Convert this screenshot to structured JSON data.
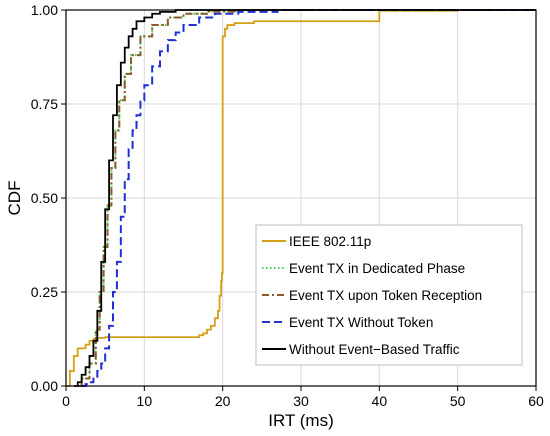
{
  "chart_data": {
    "type": "line",
    "subtype": "step-cdf",
    "xlabel": "IRT (ms)",
    "ylabel": "CDF",
    "xlim": [
      0,
      60
    ],
    "ylim": [
      0,
      1
    ],
    "xticks": [
      0,
      10,
      20,
      30,
      40,
      50,
      60
    ],
    "yticks": [
      0,
      0.25,
      0.5,
      0.75,
      1.0
    ],
    "xtick_labels": [
      "0",
      "10",
      "20",
      "30",
      "40",
      "50",
      "60"
    ],
    "ytick_labels": [
      "0.00",
      "0.25",
      "0.50",
      "0.75",
      "1.00"
    ],
    "grid": true,
    "legend_position": "bottom-right",
    "series": [
      {
        "name": "IEEE 802.11p",
        "color": "#d4a017",
        "dash": "solid",
        "points": [
          [
            0,
            0
          ],
          [
            0.5,
            0.04
          ],
          [
            1,
            0.08
          ],
          [
            1.5,
            0.1
          ],
          [
            2.5,
            0.11
          ],
          [
            3,
            0.12
          ],
          [
            3.5,
            0.125
          ],
          [
            4,
            0.128
          ],
          [
            5,
            0.13
          ],
          [
            10,
            0.13
          ],
          [
            16,
            0.13
          ],
          [
            17,
            0.135
          ],
          [
            17.5,
            0.14
          ],
          [
            18,
            0.15
          ],
          [
            18.5,
            0.16
          ],
          [
            19,
            0.18
          ],
          [
            19.4,
            0.2
          ],
          [
            19.6,
            0.24
          ],
          [
            19.8,
            0.28
          ],
          [
            19.9,
            0.3
          ],
          [
            20,
            0.93
          ],
          [
            20.3,
            0.95
          ],
          [
            20.6,
            0.96
          ],
          [
            21.5,
            0.965
          ],
          [
            24,
            0.97
          ],
          [
            30,
            0.97
          ],
          [
            39.6,
            0.97
          ],
          [
            40,
            0.998
          ],
          [
            50,
            1.0
          ],
          [
            60,
            1.0
          ]
        ]
      },
      {
        "name": "Event TX in Dedicated Phase",
        "color": "#44cc44",
        "dash": "dotted",
        "points": [
          [
            1.5,
            0
          ],
          [
            2,
            0.02
          ],
          [
            3,
            0.06
          ],
          [
            3.8,
            0.15
          ],
          [
            4.3,
            0.25
          ],
          [
            4.8,
            0.37
          ],
          [
            5.3,
            0.48
          ],
          [
            5.8,
            0.58
          ],
          [
            6.3,
            0.68
          ],
          [
            6.8,
            0.76
          ],
          [
            7.5,
            0.83
          ],
          [
            8.3,
            0.88
          ],
          [
            9.5,
            0.93
          ],
          [
            11,
            0.96
          ],
          [
            13,
            0.98
          ],
          [
            15,
            0.99
          ],
          [
            18,
            0.996
          ],
          [
            22,
            1.0
          ],
          [
            60,
            1.0
          ]
        ]
      },
      {
        "name": "Event TX upon Token Reception",
        "color": "#8b5a2b",
        "dash": "dashdot",
        "points": [
          [
            1.5,
            0
          ],
          [
            2,
            0.02
          ],
          [
            3,
            0.06
          ],
          [
            3.8,
            0.15
          ],
          [
            4.3,
            0.25
          ],
          [
            4.8,
            0.37
          ],
          [
            5.3,
            0.48
          ],
          [
            5.8,
            0.58
          ],
          [
            6.3,
            0.68
          ],
          [
            6.8,
            0.76
          ],
          [
            7.5,
            0.83
          ],
          [
            8.3,
            0.88
          ],
          [
            9.5,
            0.93
          ],
          [
            11,
            0.96
          ],
          [
            13,
            0.98
          ],
          [
            15,
            0.99
          ],
          [
            18,
            0.996
          ],
          [
            22,
            1.0
          ],
          [
            60,
            1.0
          ]
        ]
      },
      {
        "name": "Event TX Without Token",
        "color": "#1f2fd6",
        "dash": "dashed",
        "points": [
          [
            2,
            0
          ],
          [
            2.5,
            0.005
          ],
          [
            3,
            0.01
          ],
          [
            3.5,
            0.02
          ],
          [
            4,
            0.04
          ],
          [
            4.5,
            0.06
          ],
          [
            5,
            0.1
          ],
          [
            5.5,
            0.16
          ],
          [
            6,
            0.25
          ],
          [
            6.5,
            0.33
          ],
          [
            7,
            0.45
          ],
          [
            7.5,
            0.55
          ],
          [
            8,
            0.63
          ],
          [
            8.5,
            0.68
          ],
          [
            9,
            0.72
          ],
          [
            9.5,
            0.76
          ],
          [
            10,
            0.8
          ],
          [
            11,
            0.85
          ],
          [
            12,
            0.89
          ],
          [
            13,
            0.92
          ],
          [
            14,
            0.94
          ],
          [
            15,
            0.96
          ],
          [
            17,
            0.98
          ],
          [
            19,
            0.99
          ],
          [
            22,
            0.995
          ],
          [
            27,
            1.0
          ],
          [
            60,
            1.0
          ]
        ]
      },
      {
        "name": "Without Event−Based Traffic",
        "color": "#000000",
        "dash": "solid",
        "points": [
          [
            1,
            0
          ],
          [
            1.5,
            0.01
          ],
          [
            2,
            0.03
          ],
          [
            2.5,
            0.05
          ],
          [
            3,
            0.08
          ],
          [
            3.5,
            0.12
          ],
          [
            4,
            0.2
          ],
          [
            4.5,
            0.33
          ],
          [
            5,
            0.47
          ],
          [
            5.5,
            0.6
          ],
          [
            6,
            0.72
          ],
          [
            6.5,
            0.8
          ],
          [
            7,
            0.86
          ],
          [
            7.5,
            0.9
          ],
          [
            8,
            0.93
          ],
          [
            8.5,
            0.95
          ],
          [
            9,
            0.97
          ],
          [
            10,
            0.98
          ],
          [
            11,
            0.99
          ],
          [
            12,
            0.995
          ],
          [
            14,
            1.0
          ],
          [
            60,
            1.0
          ]
        ]
      }
    ]
  }
}
